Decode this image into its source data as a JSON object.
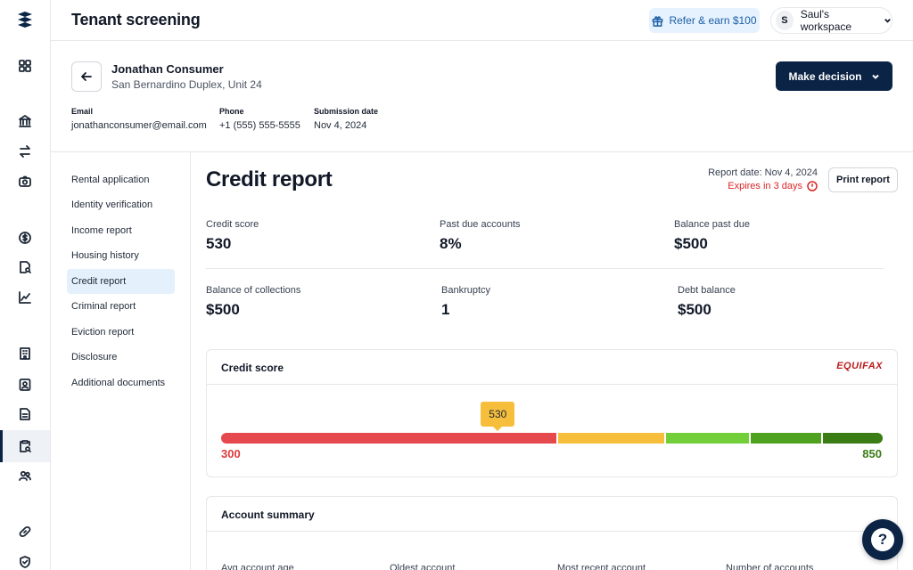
{
  "header": {
    "title": "Tenant screening",
    "refer_label": "Refer & earn $100",
    "workspace_initial": "S",
    "workspace_label": "Saul's workspace"
  },
  "rail": {
    "icons": [
      "logo-icon",
      "dashboard-icon",
      "bank-icon",
      "transfer-icon",
      "camera-icon",
      "payments-icon",
      "document-search-icon",
      "analytics-icon",
      "building-icon",
      "tenant-icon",
      "lease-icon",
      "screening-icon",
      "people-icon",
      "link-icon",
      "shield-icon"
    ],
    "active": "screening-icon"
  },
  "applicant": {
    "name": "Jonathan Consumer",
    "address": "San Bernardino Duplex, Unit 24",
    "email_label": "Email",
    "email": "jonathanconsumer@email.com",
    "phone_label": "Phone",
    "phone": "+1 (555) 555-5555",
    "submission_label": "Submission date",
    "submission_date": "Nov 4, 2024",
    "decision_label": "Make decision"
  },
  "nav": {
    "items": [
      {
        "label": "Rental application"
      },
      {
        "label": "Identity verification"
      },
      {
        "label": "Income report"
      },
      {
        "label": "Housing history"
      },
      {
        "label": "Credit report"
      },
      {
        "label": "Criminal report"
      },
      {
        "label": "Eviction report"
      },
      {
        "label": "Disclosure"
      },
      {
        "label": "Additional documents"
      }
    ],
    "active_index": 4
  },
  "report": {
    "title": "Credit report",
    "report_date": "Report date: Nov 4, 2024",
    "expires": "Expires in 3 days",
    "print_label": "Print report",
    "stats": [
      {
        "label": "Credit score",
        "value": "530"
      },
      {
        "label": "Past due accounts",
        "value": "8%"
      },
      {
        "label": "Balance past due",
        "value": "$500"
      },
      {
        "label": "Balance of collections",
        "value": "$500"
      },
      {
        "label": "Bankruptcy",
        "value": "1"
      },
      {
        "label": "Debt balance",
        "value": "$500"
      }
    ]
  },
  "credit_score_card": {
    "title": "Credit score",
    "bureau": "EQUIFAX",
    "score": "530",
    "score_value": 530,
    "min_label": "300",
    "max_label": "850",
    "min": 300,
    "max": 850,
    "bands": [
      {
        "from": 300,
        "to": 580,
        "color": "#e5484d"
      },
      {
        "from": 580,
        "to": 670,
        "color": "#f6be3b"
      },
      {
        "from": 670,
        "to": 740,
        "color": "#72cf3a"
      },
      {
        "from": 740,
        "to": 800,
        "color": "#4ea21f"
      },
      {
        "from": 800,
        "to": 850,
        "color": "#3a7d14"
      }
    ]
  },
  "account_summary": {
    "title": "Account summary",
    "columns": [
      {
        "label": "Avg account age"
      },
      {
        "label": "Oldest account"
      },
      {
        "label": "Most recent account"
      },
      {
        "label": "Number of accounts"
      }
    ]
  },
  "help": {
    "label": "?"
  }
}
